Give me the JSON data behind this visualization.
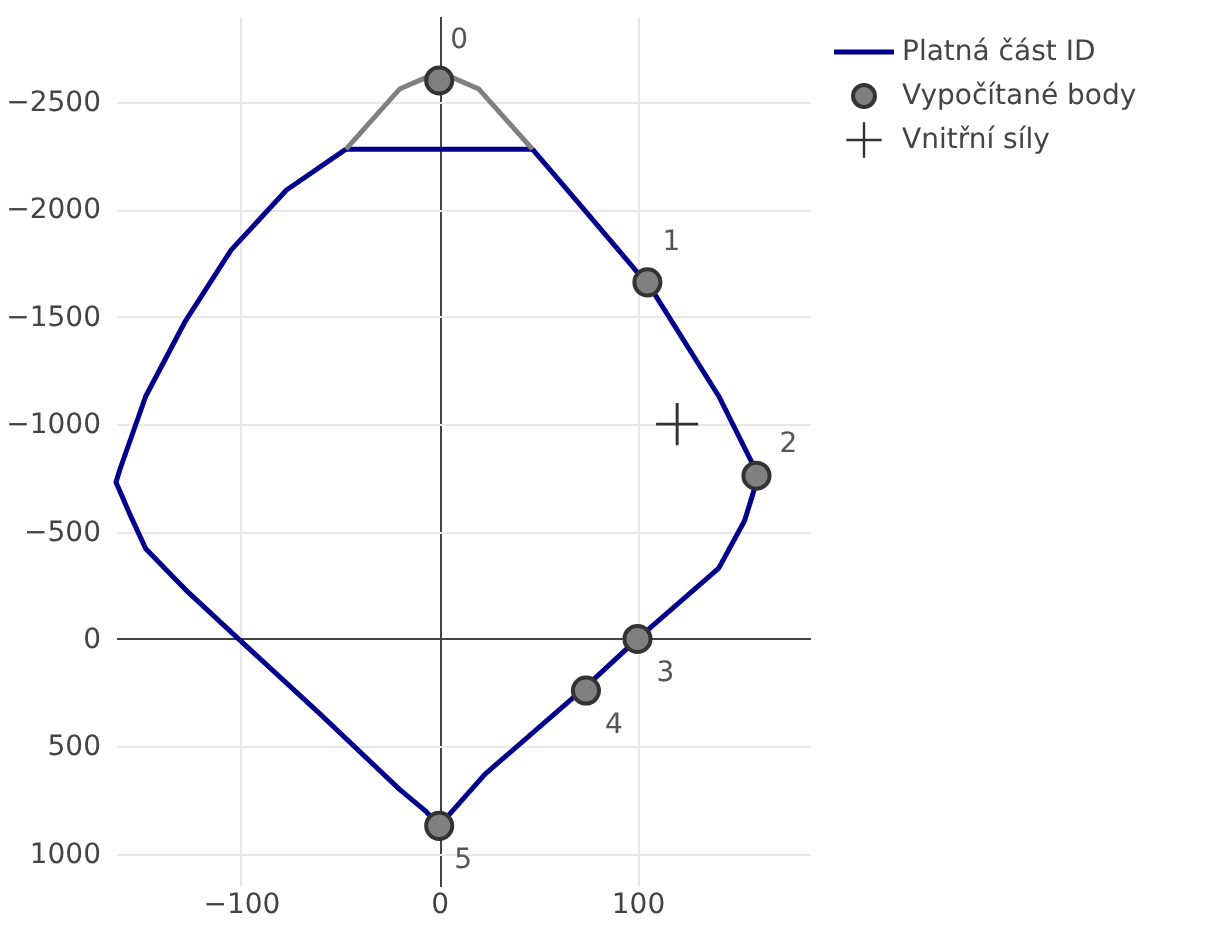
{
  "chart_data": {
    "type": "line",
    "xlim": [
      -163,
      187
    ],
    "ylim": [
      1150,
      -2900
    ],
    "xticks": [
      -100,
      0,
      100
    ],
    "yticks": [
      -2500,
      -2000,
      -1500,
      -1000,
      -500,
      0,
      500,
      1000
    ],
    "grid": true,
    "legend": "top right",
    "series": [
      {
        "name": "Platná část ID",
        "color": "#00008b",
        "line_style": "solid",
        "x": [
          -47,
          -77,
          -105,
          -128,
          -148,
          -161,
          -163,
          -156,
          -148,
          -128,
          -100,
          -60,
          -20,
          -7,
          0,
          23,
          73,
          100,
          141,
          154,
          161,
          141,
          107,
          73,
          47
        ],
        "values": [
          -2280,
          -2090,
          -1810,
          -1480,
          -1130,
          -790,
          -730,
          -580,
          -420,
          -230,
          10,
          350,
          700,
          800,
          870,
          630,
          230,
          0,
          -330,
          -550,
          -760,
          -1130,
          -1630,
          -2000,
          -2280
        ]
      },
      {
        "color": "#00008b",
        "line_style": "solid",
        "x": [
          -47,
          47
        ],
        "values": [
          -2280,
          -2280
        ]
      },
      {
        "color": "#808080",
        "line_style": "solid",
        "x": [
          -47,
          -20,
          -5,
          5,
          20,
          47
        ],
        "values": [
          -2280,
          -2560,
          -2620,
          -2620,
          -2560,
          -2280
        ]
      },
      {
        "name": "Vypočítané body",
        "type": "scatter",
        "color": "#808080",
        "marker": "circle",
        "x": [
          0,
          105,
          160,
          100,
          74,
          0
        ],
        "values": [
          -2600,
          -1660,
          -760,
          0,
          240,
          870
        ]
      },
      {
        "name": "Vnitřní síly",
        "type": "scatter",
        "color": "#333333",
        "marker": "cross",
        "x": [
          120
        ],
        "values": [
          -1000
        ]
      }
    ],
    "annotations": [
      {
        "text": "0",
        "x": 0,
        "y": -2600
      },
      {
        "text": "1",
        "x": 105,
        "y": -1660
      },
      {
        "text": "2",
        "x": 160,
        "y": -760
      },
      {
        "text": "3",
        "x": 100,
        "y": 0
      },
      {
        "text": "4",
        "x": 74,
        "y": 240
      },
      {
        "text": "5",
        "x": 0,
        "y": 870
      }
    ]
  }
}
